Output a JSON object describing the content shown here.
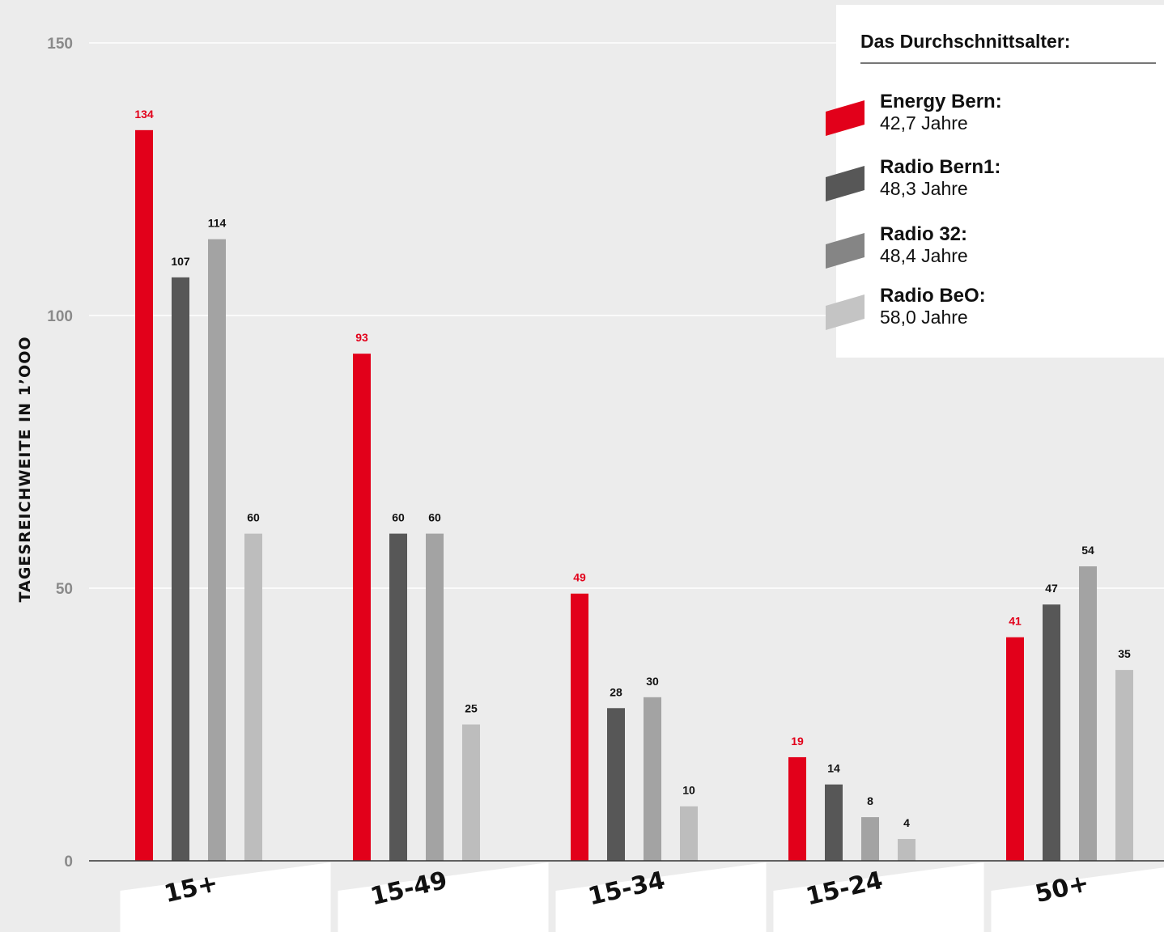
{
  "chart_data": {
    "type": "bar",
    "ylabel": "TAGESREICHWEITE IN 1’OOO",
    "xlabel": "",
    "ylim": [
      0,
      150
    ],
    "yticks": [
      "0",
      "50",
      "100",
      "150"
    ],
    "grid": true,
    "categories": [
      "15+",
      "15-49",
      "15-34",
      "15-24",
      "50+"
    ],
    "series": [
      {
        "name": "Energy Bern",
        "color": "#e2001a",
        "labelColor": "#e2001a",
        "values": [
          134,
          93,
          49,
          19,
          41
        ]
      },
      {
        "name": "Radio Bern1",
        "color": "#575757",
        "labelColor": "#111111",
        "values": [
          107,
          60,
          28,
          14,
          47
        ]
      },
      {
        "name": "Radio 32",
        "color": "#a3a3a3",
        "labelColor": "#111111",
        "values": [
          114,
          60,
          30,
          8,
          54
        ]
      },
      {
        "name": "Radio BeO",
        "color": "#bdbdbd",
        "labelColor": "#111111",
        "values": [
          60,
          25,
          10,
          4,
          35
        ]
      }
    ],
    "legend_placement": "top-right"
  },
  "legend": {
    "title": "Das Durchschnittsalter:",
    "items": [
      {
        "name": "Energy Bern:",
        "value": "42,7 Jahre",
        "color": "#e2001a"
      },
      {
        "name": "Radio Bern1:",
        "value": "48,3 Jahre",
        "color": "#575757"
      },
      {
        "name": "Radio 32:",
        "value": "48,4 Jahre",
        "color": "#858585"
      },
      {
        "name": "Radio BeO:",
        "value": "58,0 Jahre",
        "color": "#c4c4c4"
      }
    ]
  }
}
